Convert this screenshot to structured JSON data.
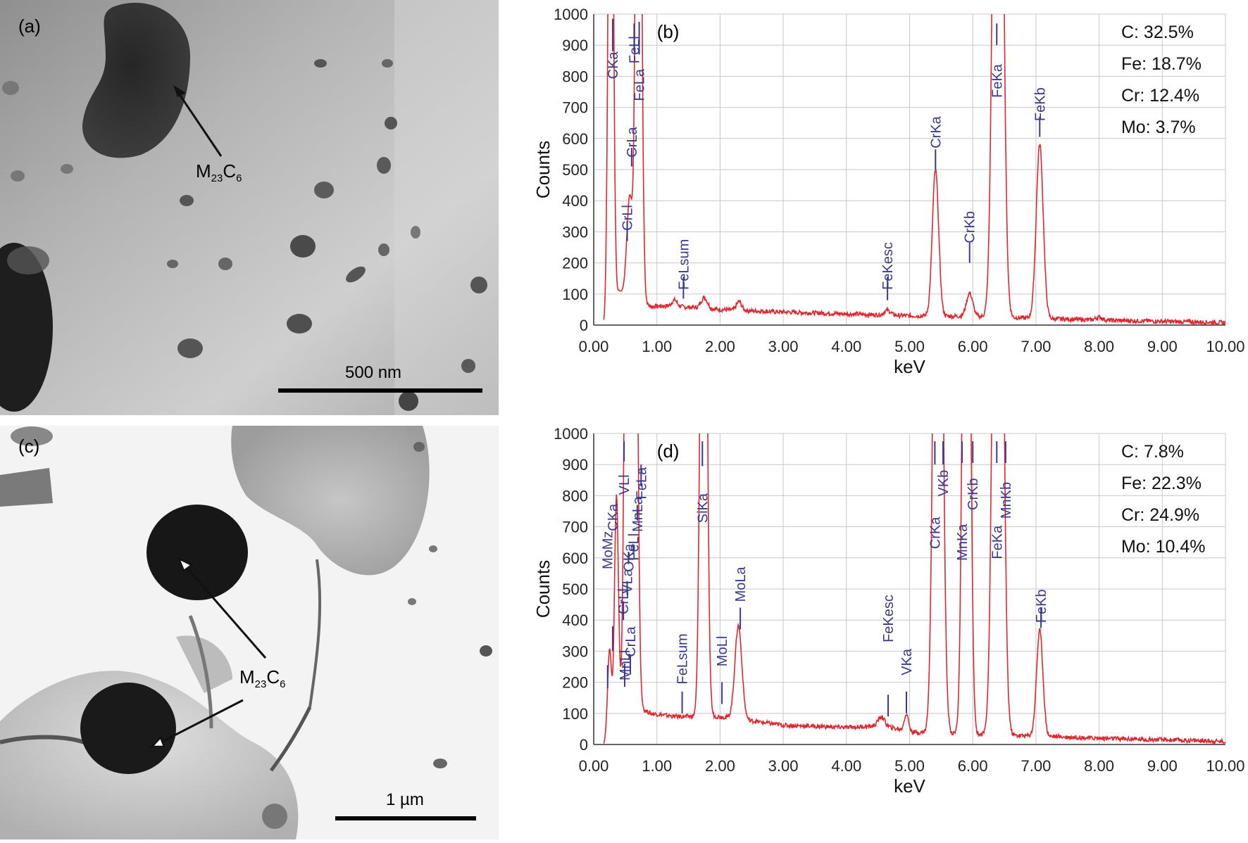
{
  "panels": {
    "a": {
      "label": "(a)",
      "annotation": {
        "main": "M",
        "sub1": "23",
        "mid": "C",
        "sub2": "6"
      },
      "scale_bar": "500 nm"
    },
    "c": {
      "label": "(c)",
      "annotation": {
        "main": "M",
        "sub1": "23",
        "mid": "C",
        "sub2": "6"
      },
      "scale_bar": "1 µm"
    }
  },
  "colors": {
    "spectrum": "#e0262e",
    "peak_label": "#3a3a8c",
    "grid": "#c8c8c8",
    "axis": "#333333"
  },
  "chart_data": [
    {
      "panel_label": "(b)",
      "type": "line",
      "xlabel": "keV",
      "ylabel": "Counts",
      "xlim": [
        0,
        10
      ],
      "ylim": [
        0,
        1000
      ],
      "x_ticks": [
        "0.00",
        "1.00",
        "2.00",
        "3.00",
        "4.00",
        "5.00",
        "6.00",
        "7.00",
        "8.00",
        "9.00",
        "10.00"
      ],
      "y_ticks": [
        "0",
        "100",
        "200",
        "300",
        "400",
        "500",
        "600",
        "700",
        "800",
        "900",
        "1000"
      ],
      "grid": true,
      "composition": [
        "C: 32.5%",
        "Fe: 18.7%",
        "Cr: 12.4%",
        "Mo: 3.7%"
      ],
      "spectrum": {
        "baseline": [
          [
            0.16,
            0
          ],
          [
            0.4,
            110
          ],
          [
            0.9,
            60
          ],
          [
            1.2,
            62
          ],
          [
            2.0,
            50
          ],
          [
            3.0,
            42
          ],
          [
            4.0,
            36
          ],
          [
            5.0,
            30
          ],
          [
            6.0,
            28
          ],
          [
            7.0,
            22
          ],
          [
            8.0,
            16
          ],
          [
            10.0,
            8
          ]
        ],
        "peaks": [
          {
            "x": 0.27,
            "h": 2400,
            "w": 0.035
          },
          {
            "x": 0.57,
            "h": 320,
            "w": 0.045
          },
          {
            "x": 0.71,
            "h": 2600,
            "w": 0.04
          },
          {
            "x": 1.28,
            "h": 20,
            "w": 0.04
          },
          {
            "x": 1.75,
            "h": 35,
            "w": 0.05
          },
          {
            "x": 2.3,
            "h": 28,
            "w": 0.04
          },
          {
            "x": 4.65,
            "h": 15,
            "w": 0.05
          },
          {
            "x": 5.41,
            "h": 470,
            "w": 0.05
          },
          {
            "x": 5.95,
            "h": 75,
            "w": 0.05
          },
          {
            "x": 6.4,
            "h": 3200,
            "w": 0.065
          },
          {
            "x": 7.06,
            "h": 560,
            "w": 0.055
          },
          {
            "x": 8.0,
            "h": 10,
            "w": 0.05
          }
        ]
      },
      "peaks": [
        {
          "label": "CKa",
          "x": 0.3,
          "y": 835,
          "marker": [
            880,
            985
          ]
        },
        {
          "label": "CrLl",
          "x": 0.53,
          "y": 345,
          "marker": [
            270,
            335
          ]
        },
        {
          "label": "CrLa",
          "x": 0.6,
          "y": 588,
          "marker": [
            510,
            570
          ]
        },
        {
          "label": "FeLa",
          "x": 0.72,
          "y": 772,
          "marker": [
            870,
            975
          ]
        },
        {
          "label": "FeLl",
          "x": 0.64,
          "y": 885,
          "marker": [
            880,
            970
          ]
        },
        {
          "label": "FeLsum",
          "x": 1.42,
          "y": 195,
          "marker": [
            85,
            155
          ]
        },
        {
          "label": "FeKesc",
          "x": 4.65,
          "y": 190,
          "marker": [
            80,
            155
          ]
        },
        {
          "label": "CrKa",
          "x": 5.41,
          "y": 620,
          "marker": [
            500,
            565
          ]
        },
        {
          "label": "CrKb",
          "x": 5.95,
          "y": 315,
          "marker": [
            200,
            265
          ]
        },
        {
          "label": "FeKa",
          "x": 6.38,
          "y": 785,
          "marker": [
            900,
            970
          ]
        },
        {
          "label": "FeKb",
          "x": 7.06,
          "y": 710,
          "marker": [
            605,
            670
          ]
        }
      ]
    },
    {
      "panel_label": "(d)",
      "type": "line",
      "xlabel": "keV",
      "ylabel": "Counts",
      "xlim": [
        0,
        10
      ],
      "ylim": [
        0,
        1000
      ],
      "x_ticks": [
        "0.00",
        "1.00",
        "2.00",
        "3.00",
        "4.00",
        "5.00",
        "6.00",
        "7.00",
        "8.00",
        "9.00",
        "10.00"
      ],
      "y_ticks": [
        "0",
        "100",
        "200",
        "300",
        "400",
        "500",
        "600",
        "700",
        "800",
        "900",
        "1000"
      ],
      "grid": true,
      "composition": [
        "C: 7.8%",
        "Fe: 22.3%",
        "Cr: 24.9%",
        "Mo: 10.4%"
      ],
      "spectrum": {
        "baseline": [
          [
            0.16,
            0
          ],
          [
            0.45,
            150
          ],
          [
            0.9,
            100
          ],
          [
            1.3,
            90
          ],
          [
            2.0,
            90
          ],
          [
            3.0,
            62
          ],
          [
            4.0,
            55
          ],
          [
            4.6,
            60
          ],
          [
            5.0,
            40
          ],
          [
            6.0,
            32
          ],
          [
            7.0,
            28
          ],
          [
            8.0,
            20
          ],
          [
            10.0,
            10
          ]
        ],
        "peaks": [
          {
            "x": 0.25,
            "h": 260,
            "w": 0.03
          },
          {
            "x": 0.36,
            "h": 700,
            "w": 0.03
          },
          {
            "x": 0.52,
            "h": 1800,
            "w": 0.035
          },
          {
            "x": 0.65,
            "h": 2200,
            "w": 0.04
          },
          {
            "x": 1.74,
            "h": 2600,
            "w": 0.045
          },
          {
            "x": 2.29,
            "h": 300,
            "w": 0.055
          },
          {
            "x": 4.55,
            "h": 30,
            "w": 0.05
          },
          {
            "x": 4.95,
            "h": 55,
            "w": 0.035
          },
          {
            "x": 5.45,
            "h": 3000,
            "w": 0.06
          },
          {
            "x": 5.9,
            "h": 3000,
            "w": 0.05
          },
          {
            "x": 6.4,
            "h": 3400,
            "w": 0.065
          },
          {
            "x": 7.06,
            "h": 340,
            "w": 0.05
          }
        ]
      },
      "peaks": [
        {
          "label": "MoMz",
          "x": 0.22,
          "y": 625,
          "marker": [
            180,
            255
          ]
        },
        {
          "label": "CKa",
          "x": 0.3,
          "y": 730,
          "marker": [
            300,
            380
          ]
        },
        {
          "label": "MnLl",
          "x": 0.49,
          "y": 255,
          "marker": [
            185,
            260
          ]
        },
        {
          "label": "CrLl",
          "x": 0.47,
          "y": 460,
          "marker": [
            400,
            460
          ]
        },
        {
          "label": "CrLa",
          "x": 0.58,
          "y": 330,
          "marker": [
            225,
            290
          ]
        },
        {
          "label": "VLa",
          "x": 0.53,
          "y": 525,
          "marker": [
            480,
            525
          ]
        },
        {
          "label": "OKa",
          "x": 0.55,
          "y": 600,
          "marker": [
            580,
            620
          ]
        },
        {
          "label": "VLl",
          "x": 0.48,
          "y": 835,
          "marker": [
            910,
            975
          ]
        },
        {
          "label": "FeLl",
          "x": 0.63,
          "y": 635,
          "marker": [
            610,
            640
          ]
        },
        {
          "label": "MnLa",
          "x": 0.69,
          "y": 740,
          "marker": [
            720,
            770
          ]
        },
        {
          "label": "FeLa",
          "x": 0.75,
          "y": 840,
          "marker": [
            830,
            900
          ]
        },
        {
          "label": "SiKa",
          "x": 1.72,
          "y": 760,
          "marker": [
            895,
            975
          ]
        },
        {
          "label": "FeLsum",
          "x": 1.4,
          "y": 275,
          "marker": [
            100,
            170
          ]
        },
        {
          "label": "MoLl",
          "x": 2.03,
          "y": 300,
          "marker": [
            130,
            200
          ]
        },
        {
          "label": "MoLa",
          "x": 2.32,
          "y": 515,
          "marker": [
            370,
            440
          ]
        },
        {
          "label": "FeKesc",
          "x": 4.66,
          "y": 405,
          "marker": [
            90,
            160
          ]
        },
        {
          "label": "VKa",
          "x": 4.95,
          "y": 265,
          "marker": [
            100,
            170
          ]
        },
        {
          "label": "CrKa",
          "x": 5.4,
          "y": 680,
          "marker": [
            900,
            975
          ]
        },
        {
          "label": "VKb",
          "x": 5.53,
          "y": 840,
          "marker": [
            900,
            975
          ]
        },
        {
          "label": "MnKa",
          "x": 5.83,
          "y": 650,
          "marker": [
            905,
            975
          ]
        },
        {
          "label": "CrKb",
          "x": 6.0,
          "y": 805,
          "marker": [
            905,
            975
          ]
        },
        {
          "label": "FeKa",
          "x": 6.38,
          "y": 650,
          "marker": [
            905,
            975
          ]
        },
        {
          "label": "MnKb",
          "x": 6.52,
          "y": 785,
          "marker": [
            905,
            975
          ]
        },
        {
          "label": "FeKb",
          "x": 7.08,
          "y": 445,
          "marker": [
            375,
            440
          ]
        }
      ]
    }
  ]
}
